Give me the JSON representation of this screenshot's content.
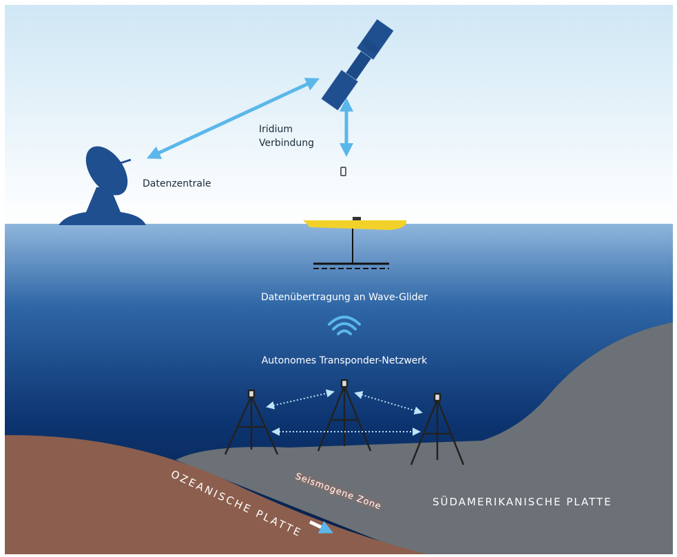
{
  "labels": {
    "iridium": [
      "Iridium",
      "Verbindung"
    ],
    "datacenter": "Datenzentrale",
    "transmission": "Datenübertragung an Wave-Glider",
    "network": "Autonomes Transponder-Netzwerk",
    "oceanic_plate": "OZEANISCHE PLATTE",
    "seismogenic_zone": "Seismogene Zone",
    "south_american_plate": "SÜDAMERIKANISCHE PLATTE"
  }
}
